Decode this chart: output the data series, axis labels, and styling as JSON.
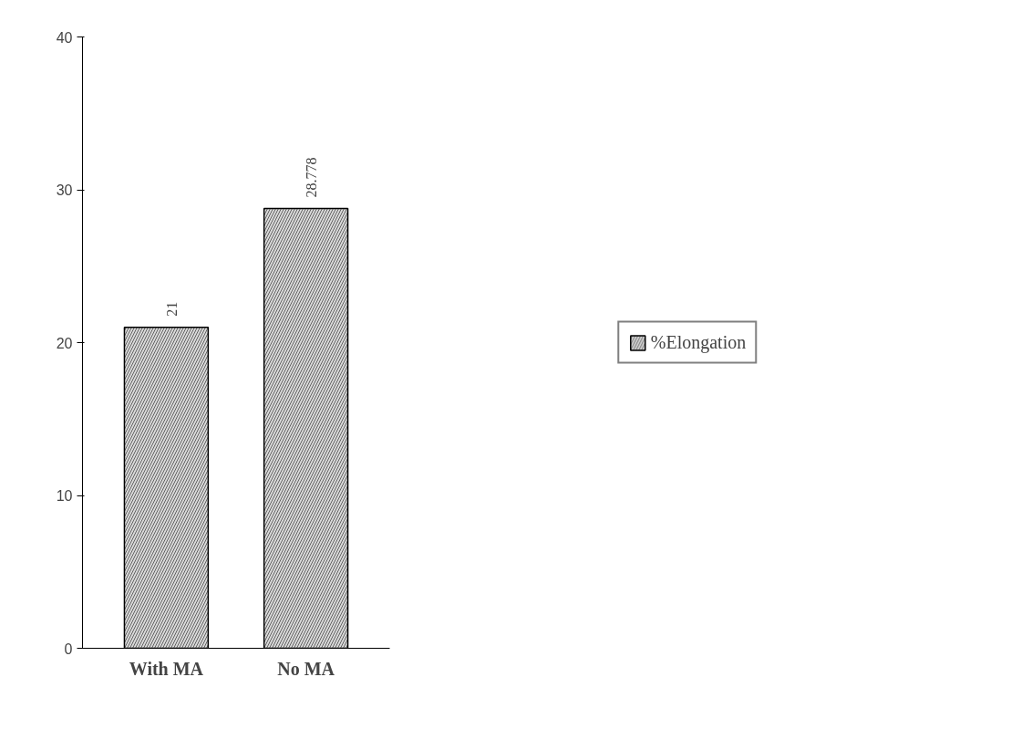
{
  "chart_data": {
    "type": "bar",
    "categories": [
      "With MA",
      "No MA"
    ],
    "series": [
      {
        "name": "%Elongation",
        "color": "#d9d9d9",
        "values": [
          21,
          28.778
        ]
      }
    ],
    "ylim": [
      0,
      40
    ],
    "yticks": [
      0,
      10,
      20,
      30,
      40
    ],
    "data_labels": true,
    "legend": "right",
    "grid": false
  }
}
